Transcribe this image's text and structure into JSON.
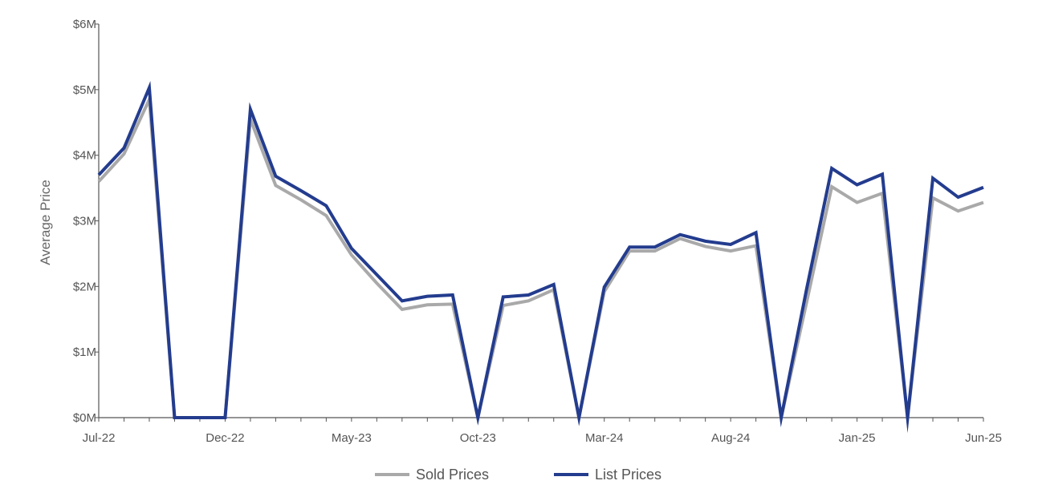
{
  "chart_data": {
    "type": "line",
    "ylabel": "Average Price",
    "xlabel": "",
    "ylim": [
      0,
      6000000
    ],
    "y_ticks": [
      0,
      1000000,
      2000000,
      3000000,
      4000000,
      5000000,
      6000000
    ],
    "y_tick_labels": [
      "$0M",
      "$1M",
      "$2M",
      "$3M",
      "$4M",
      "$5M",
      "$6M"
    ],
    "x": [
      "Jul-22",
      "Aug-22",
      "Sep-22",
      "Oct-22",
      "Nov-22",
      "Dec-22",
      "Jan-23",
      "Feb-23",
      "Mar-23",
      "Apr-23",
      "May-23",
      "Jun-23",
      "Jul-23",
      "Aug-23",
      "Sep-23",
      "Oct-23",
      "Nov-23",
      "Dec-23",
      "Jan-24",
      "Feb-24",
      "Mar-24",
      "Apr-24",
      "May-24",
      "Jun-24",
      "Jul-24",
      "Aug-24",
      "Sep-24",
      "Oct-24",
      "Nov-24",
      "Dec-24",
      "Jan-25",
      "Feb-25",
      "Mar-25",
      "Apr-25",
      "May-25",
      "Jun-25"
    ],
    "x_tick_labels": [
      "Jul-22",
      "Dec-22",
      "May-23",
      "Oct-23",
      "Mar-24",
      "Aug-24",
      "Jan-25",
      "Jun-25"
    ],
    "x_tick_label_months": [
      "Jul-22",
      "Dec-22",
      "May-23",
      "Oct-23",
      "Mar-24",
      "Aug-24",
      "Jan-25",
      "Jun-25"
    ],
    "legend_position": "bottom-center",
    "grid": false,
    "series": [
      {
        "name": "Sold Prices",
        "color": "#a9a9a9",
        "values": [
          3600000,
          4020000,
          4850000,
          0,
          0,
          0,
          4550000,
          3540000,
          3320000,
          3080000,
          2480000,
          2050000,
          1650000,
          1720000,
          1730000,
          0,
          1710000,
          1780000,
          1950000,
          0,
          1920000,
          2540000,
          2540000,
          2730000,
          2610000,
          2540000,
          2620000,
          0,
          1750000,
          3520000,
          3280000,
          3420000,
          0,
          3350000,
          3150000,
          3280000
        ]
      },
      {
        "name": "List Prices",
        "color": "#233c8e",
        "values": [
          3700000,
          4110000,
          5030000,
          0,
          0,
          0,
          4700000,
          3680000,
          3460000,
          3230000,
          2580000,
          2180000,
          1780000,
          1850000,
          1870000,
          0,
          1840000,
          1870000,
          2030000,
          0,
          1990000,
          2600000,
          2600000,
          2790000,
          2690000,
          2640000,
          2820000,
          0,
          1950000,
          3800000,
          3550000,
          3710000,
          0,
          3650000,
          3360000,
          3510000
        ]
      }
    ]
  }
}
